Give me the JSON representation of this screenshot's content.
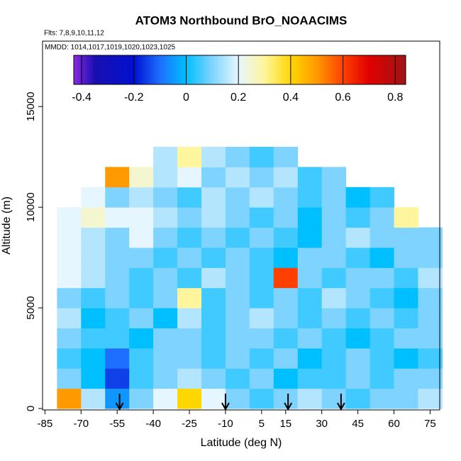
{
  "chart_data": {
    "type": "heatmap",
    "title": "ATOM3 Northbound BrO_NOAACIMS",
    "subtitle": "Flts: 7,8,9,10,11,12",
    "annotation": "MMDD: 1014,1017,1019,1020,1023,1025",
    "x_label": "Latitude (deg N)",
    "y_label": "Altitude (m)",
    "x": [
      -75,
      -65,
      -55,
      -45,
      -35,
      -25,
      -15,
      -5,
      5,
      15,
      25,
      35,
      45,
      55,
      65,
      75
    ],
    "y": [
      500,
      1500,
      2500,
      3500,
      4500,
      5500,
      6500,
      7500,
      8500,
      9500,
      10500,
      11500,
      12500
    ],
    "cell_width": 10,
    "cell_height": 1000,
    "values": [
      [
        0.5,
        0.15,
        -0.05,
        0.1,
        0.2,
        0.4,
        0.2,
        0.1,
        0.05,
        0.1,
        0.15,
        0.1,
        0.05,
        0.1,
        0.1,
        0.15
      ],
      [
        0.1,
        0.0,
        -0.15,
        0.05,
        0.1,
        0.15,
        0.1,
        0.05,
        0.1,
        0.0,
        0.05,
        0.05,
        0.1,
        0.05,
        0.1,
        0.1
      ],
      [
        0.05,
        0.0,
        -0.1,
        0.05,
        0.1,
        0.1,
        0.05,
        0.1,
        0.05,
        0.1,
        0.0,
        0.05,
        0.1,
        0.05,
        0.0,
        0.05
      ],
      [
        0.1,
        0.05,
        0.05,
        0.0,
        0.1,
        0.1,
        0.05,
        0.1,
        0.1,
        0.05,
        0.1,
        0.05,
        0.0,
        0.05,
        0.1,
        0.1
      ],
      [
        0.15,
        0.0,
        0.05,
        0.1,
        0.0,
        0.15,
        0.05,
        0.1,
        0.15,
        0.1,
        0.05,
        0.1,
        0.05,
        0.1,
        0.05,
        0.1
      ],
      [
        0.1,
        0.05,
        0.1,
        0.05,
        0.1,
        0.3,
        0.05,
        0.1,
        0.05,
        0.1,
        0.05,
        0.15,
        0.1,
        0.05,
        0.0,
        0.1
      ],
      [
        0.2,
        0.15,
        0.1,
        0.05,
        0.1,
        0.05,
        0.15,
        0.1,
        0.05,
        0.6,
        0.1,
        0.05,
        0.1,
        0.1,
        0.05,
        0.15
      ],
      [
        0.2,
        0.15,
        0.1,
        0.1,
        0.05,
        0.1,
        0.05,
        0.1,
        0.05,
        0.0,
        0.1,
        0.1,
        0.05,
        0.0,
        0.1,
        0.1
      ],
      [
        0.2,
        0.15,
        0.1,
        0.2,
        0.1,
        0.05,
        0.1,
        0.05,
        0.1,
        0.05,
        0.0,
        0.1,
        0.15,
        0.1,
        0.1,
        0.1
      ],
      [
        0.2,
        0.25,
        0.2,
        0.2,
        0.15,
        0.1,
        0.15,
        0.1,
        0.05,
        0.1,
        0.0,
        0.1,
        0.05,
        0.1,
        0.3,
        null
      ],
      [
        null,
        0.2,
        0.1,
        0.15,
        0.1,
        0.05,
        0.15,
        0.1,
        0.15,
        0.1,
        0.05,
        0.1,
        0.0,
        0.05,
        null,
        null
      ],
      [
        null,
        null,
        0.5,
        0.25,
        0.15,
        0.2,
        0.1,
        0.15,
        0.1,
        0.15,
        0.05,
        0.1,
        null,
        null,
        null,
        null
      ],
      [
        null,
        null,
        null,
        null,
        0.15,
        0.3,
        0.15,
        0.1,
        0.05,
        0.1,
        null,
        null,
        null,
        null,
        null,
        null
      ]
    ],
    "xlim": [
      -86,
      79
    ],
    "ylim": [
      -70,
      18250
    ],
    "xticks": [
      -85,
      -70,
      -55,
      -40,
      -25,
      -10,
      5,
      15,
      30,
      45,
      60,
      75
    ],
    "yticks": [
      0,
      5000,
      10000,
      15000
    ],
    "zlim": [
      -0.43,
      0.84
    ],
    "zticks": [
      -0.4,
      -0.2,
      0.0,
      0.2,
      0.4,
      0.6,
      0.8
    ],
    "colorscale": [
      [
        -0.43,
        "#8a2be2"
      ],
      [
        -0.35,
        "#1a0fb0"
      ],
      [
        -0.2,
        "#0010d0"
      ],
      [
        -0.1,
        "#1e6fff"
      ],
      [
        0.0,
        "#00bfff"
      ],
      [
        0.1,
        "#7fd4ff"
      ],
      [
        0.2,
        "#e6f6ff"
      ],
      [
        0.3,
        "#fff59d"
      ],
      [
        0.4,
        "#ffd700"
      ],
      [
        0.5,
        "#ff9a00"
      ],
      [
        0.6,
        "#ff4000"
      ],
      [
        0.7,
        "#e00000"
      ],
      [
        0.84,
        "#a01515"
      ]
    ],
    "arrows_x": [
      -54,
      -10,
      16,
      38
    ]
  }
}
